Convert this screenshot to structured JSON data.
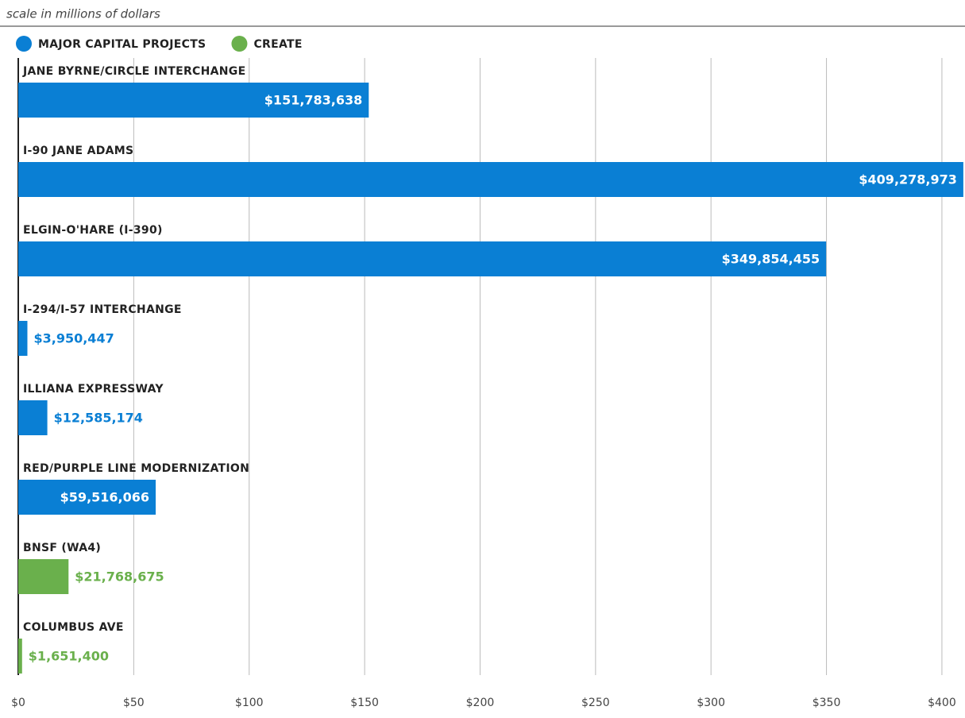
{
  "chart_data": {
    "type": "bar",
    "orientation": "horizontal",
    "subtitle": "scale in millions of dollars",
    "categories": [
      "JANE BYRNE/CIRCLE INTERCHANGE",
      "I-90 JANE ADAMS",
      "ELGIN-O'HARE (I-390)",
      "I-294/I-57 INTERCHANGE",
      "ILLIANA EXPRESSWAY",
      "RED/PURPLE LINE MODERNIZATION",
      "BNSF (WA4)",
      "COLUMBUS AVE"
    ],
    "series": [
      {
        "name": "MAJOR CAPITAL PROJECTS",
        "color": "#0a7fd4",
        "values": [
          151.783638,
          409.278973,
          349.854455,
          3.950447,
          12.585174,
          59.516066,
          null,
          null
        ],
        "value_labels": [
          "$151,783,638",
          "$409,278,973",
          "$349,854,455",
          "$3,950,447",
          "$12,585,174",
          "$59,516,066",
          null,
          null
        ]
      },
      {
        "name": "CREATE",
        "color": "#6ab04c",
        "values": [
          null,
          null,
          null,
          null,
          null,
          null,
          21.768675,
          1.6514
        ],
        "value_labels": [
          null,
          null,
          null,
          null,
          null,
          null,
          "$21,768,675",
          "$1,651,400"
        ]
      }
    ],
    "xlim": [
      0,
      410
    ],
    "xticks": [
      {
        "value": 0,
        "label": "$0"
      },
      {
        "value": 50,
        "label": "$50"
      },
      {
        "value": 100,
        "label": "$100"
      },
      {
        "value": 150,
        "label": "$150"
      },
      {
        "value": 200,
        "label": "$200"
      },
      {
        "value": 250,
        "label": "$250"
      },
      {
        "value": 300,
        "label": "$300"
      },
      {
        "value": 350,
        "label": "$350"
      },
      {
        "value": 400,
        "label": "$400"
      }
    ],
    "grid": true,
    "legend": "top-left"
  }
}
